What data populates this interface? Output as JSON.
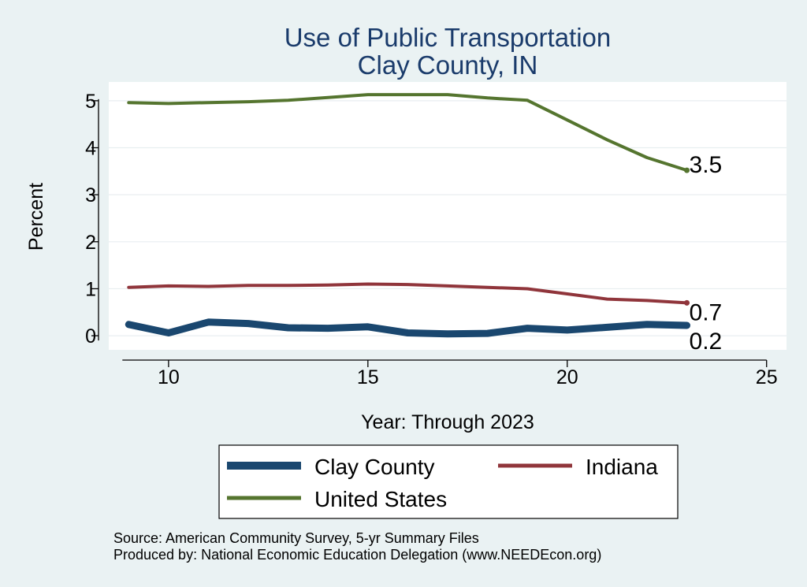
{
  "chart_data": {
    "type": "line",
    "title": "Use of Public Transportation",
    "subtitle": "Clay County, IN",
    "xlabel": "Year: Through 2023",
    "ylabel": "Percent",
    "xlim": [
      8.5,
      25.5
    ],
    "ylim": [
      -0.3,
      5.4
    ],
    "xticks": [
      10,
      15,
      20,
      25
    ],
    "yticks": [
      0,
      1,
      2,
      3,
      4,
      5
    ],
    "grid": true,
    "legend_position": "bottom",
    "x": [
      9,
      10,
      11,
      12,
      13,
      14,
      15,
      16,
      17,
      18,
      19,
      20,
      21,
      22,
      23
    ],
    "series": [
      {
        "name": "Clay County",
        "color": "#1a476f",
        "values": [
          0.24,
          0.06,
          0.29,
          0.26,
          0.17,
          0.16,
          0.19,
          0.06,
          0.04,
          0.05,
          0.16,
          0.12,
          0.18,
          0.24,
          0.22
        ],
        "end_label": "0.2"
      },
      {
        "name": "Indiana",
        "color": "#90353b",
        "values": [
          1.03,
          1.06,
          1.05,
          1.07,
          1.07,
          1.08,
          1.1,
          1.09,
          1.06,
          1.03,
          1.0,
          0.89,
          0.78,
          0.75,
          0.7
        ],
        "end_label": "0.7"
      },
      {
        "name": "United States",
        "color": "#55752f",
        "values": [
          4.96,
          4.94,
          4.96,
          4.98,
          5.01,
          5.07,
          5.13,
          5.13,
          5.13,
          5.06,
          5.01,
          4.59,
          4.17,
          3.79,
          3.52
        ],
        "end_label": "3.5"
      }
    ],
    "source_note": "Source: American Community Survey, 5-yr Summary Files",
    "producer_note": "Produced by: National Economic Education Delegation (www.NEEDEcon.org)"
  }
}
